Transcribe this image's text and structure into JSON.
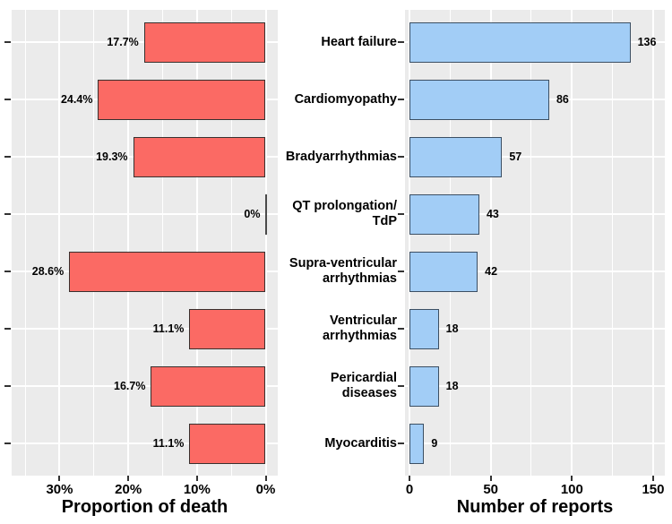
{
  "figure": {
    "background": "#ffffff",
    "panel_bg": "#EBEBEB",
    "grid_color": "#FFFFFF",
    "tick_color": "#333333",
    "text_color": "#000000"
  },
  "categories": [
    "Heart failure",
    "Cardiomyopathy",
    "Bradyarrhythmias",
    "QT prolongation/\nTdP",
    "Supra-ventricular\narrhythmias",
    "Ventricular\narrhythmias",
    "Pericardial\ndiseases",
    "Myocarditis"
  ],
  "chart_data": [
    {
      "type": "bar",
      "orientation": "horizontal",
      "direction": "right-to-left",
      "xlabel": "Proportion of death",
      "categories": [
        "Heart failure",
        "Cardiomyopathy",
        "Bradyarrhythmias",
        "QT prolongation/TdP",
        "Supra-ventricular arrhythmias",
        "Ventricular arrhythmias",
        "Pericardial diseases",
        "Myocarditis"
      ],
      "values": [
        17.7,
        24.4,
        19.3,
        0,
        28.6,
        11.1,
        16.7,
        11.1
      ],
      "value_labels": [
        "17.7%",
        "24.4%",
        "19.3%",
        "0%",
        "28.6%",
        "11.1%",
        "16.7%",
        "11.1%"
      ],
      "x_major_ticks": [
        {
          "value": 30,
          "label": "30%"
        },
        {
          "value": 20,
          "label": "20%"
        },
        {
          "value": 10,
          "label": "10%"
        },
        {
          "value": 0,
          "label": "0%"
        }
      ],
      "x_minor_ticks": [
        35,
        25,
        15,
        5
      ],
      "xlim": [
        0,
        30
      ],
      "x_reversed": true,
      "grid": "on",
      "legend": "none",
      "bar_fill": "#FB6A64",
      "bar_stroke": "#38302E"
    },
    {
      "type": "bar",
      "orientation": "horizontal",
      "direction": "left-to-right",
      "xlabel": "Number of reports",
      "categories": [
        "Heart failure",
        "Cardiomyopathy",
        "Bradyarrhythmias",
        "QT prolongation/TdP",
        "Supra-ventricular arrhythmias",
        "Ventricular arrhythmias",
        "Pericardial diseases",
        "Myocarditis"
      ],
      "values": [
        136,
        86,
        57,
        43,
        42,
        18,
        18,
        9
      ],
      "value_labels": [
        "136",
        "86",
        "57",
        "43",
        "42",
        "18",
        "18",
        "9"
      ],
      "x_major_ticks": [
        {
          "value": 0,
          "label": "0"
        },
        {
          "value": 50,
          "label": "50"
        },
        {
          "value": 100,
          "label": "100"
        },
        {
          "value": 150,
          "label": "150"
        }
      ],
      "x_minor_ticks": [
        25,
        75,
        125
      ],
      "xlim": [
        0,
        150
      ],
      "x_reversed": false,
      "grid": "on",
      "legend": "none",
      "bar_fill": "#A2CDF6",
      "bar_stroke": "#3C4F63"
    }
  ]
}
